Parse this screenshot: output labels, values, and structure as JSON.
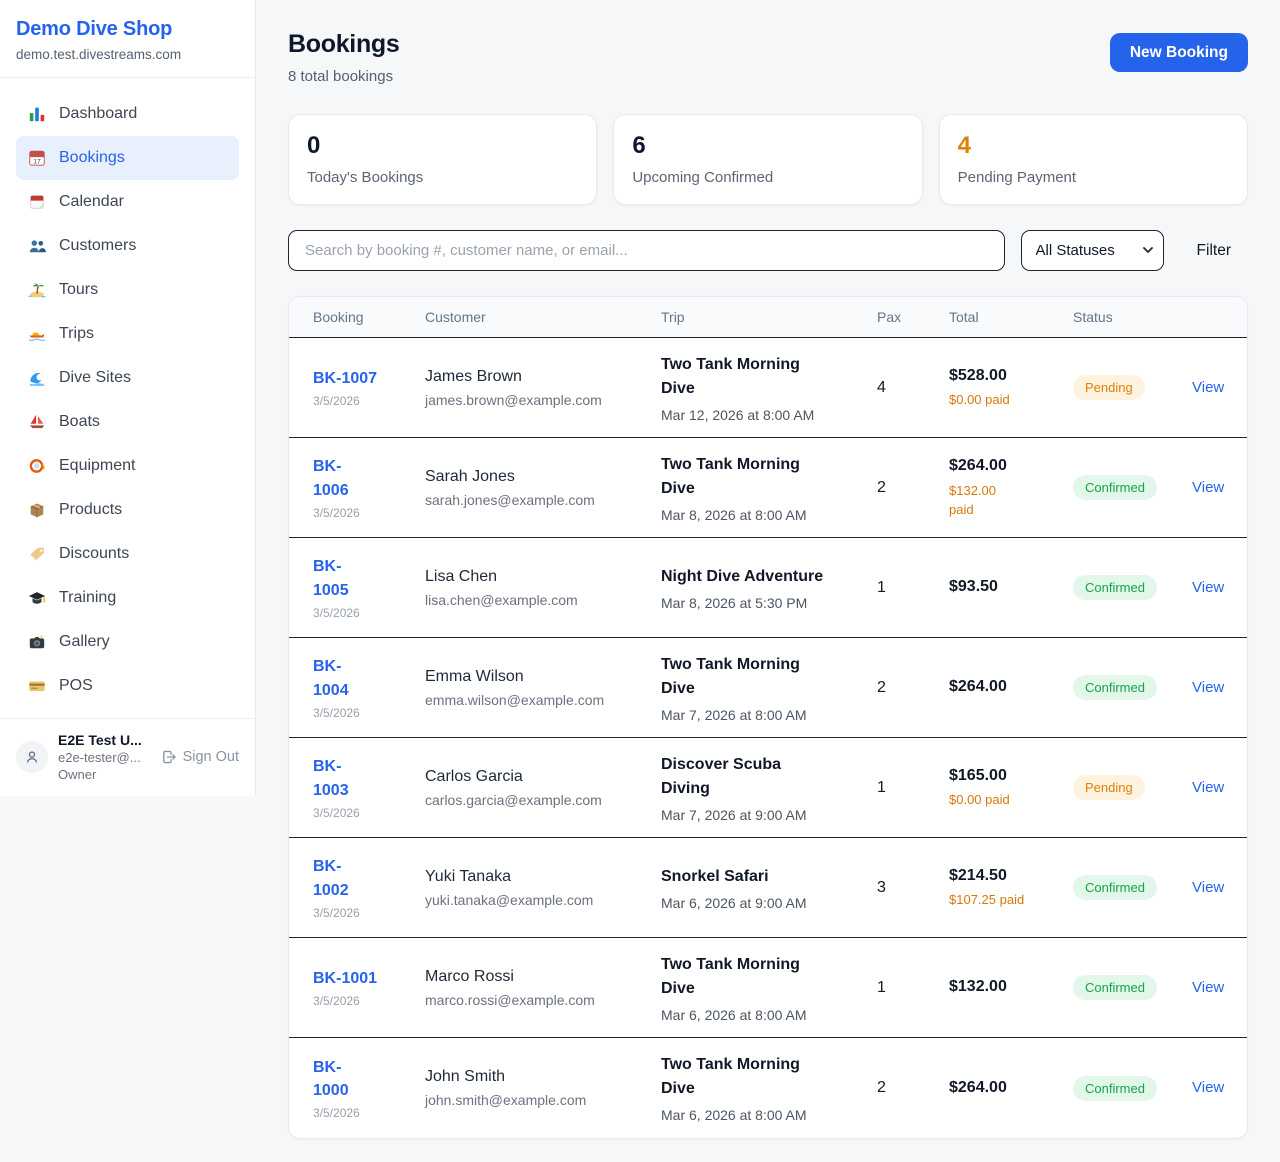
{
  "colors": {
    "accent": "#2563eb",
    "pending_text": "#dd7d10",
    "pending_bg": "#fdf3de",
    "confirmed_text": "#18a34a",
    "confirmed_bg": "#e2f7e9",
    "paid_orange": "#d97706"
  },
  "sidebar": {
    "shop_name": "Demo Dive Shop",
    "domain": "demo.test.divestreams.com",
    "nav": [
      {
        "label": "Dashboard",
        "icon": "bar-chart-icon",
        "active": false
      },
      {
        "label": "Bookings",
        "icon": "calendar-17-icon",
        "active": true
      },
      {
        "label": "Calendar",
        "icon": "tear-calendar-icon",
        "active": false
      },
      {
        "label": "Customers",
        "icon": "people-icon",
        "active": false
      },
      {
        "label": "Tours",
        "icon": "island-icon",
        "active": false
      },
      {
        "label": "Trips",
        "icon": "speedboat-icon",
        "active": false
      },
      {
        "label": "Dive Sites",
        "icon": "wave-icon",
        "active": false
      },
      {
        "label": "Boats",
        "icon": "sailboat-icon",
        "active": false
      },
      {
        "label": "Equipment",
        "icon": "dive-mask-icon",
        "active": false
      },
      {
        "label": "Products",
        "icon": "box-icon",
        "active": false
      },
      {
        "label": "Discounts",
        "icon": "tag-icon",
        "active": false
      },
      {
        "label": "Training",
        "icon": "grad-cap-icon",
        "active": false
      },
      {
        "label": "Gallery",
        "icon": "camera-icon",
        "active": false
      },
      {
        "label": "POS",
        "icon": "credit-card-icon",
        "active": false
      }
    ],
    "user": {
      "name": "E2E Test U...",
      "email": "e2e-tester@...",
      "role": "Owner",
      "sign_out": "Sign Out"
    }
  },
  "header": {
    "title": "Bookings",
    "subtitle": "8 total bookings",
    "new_booking": "New Booking"
  },
  "stats": [
    {
      "value": "0",
      "label": "Today's Bookings",
      "highlight": false
    },
    {
      "value": "6",
      "label": "Upcoming Confirmed",
      "highlight": false
    },
    {
      "value": "4",
      "label": "Pending Payment",
      "highlight": true
    }
  ],
  "filters": {
    "search_placeholder": "Search by booking #, customer name, or email...",
    "status_selected": "All Statuses",
    "filter_label": "Filter"
  },
  "table": {
    "headers": [
      "Booking",
      "Customer",
      "Trip",
      "Pax",
      "Total",
      "Status"
    ],
    "view_label": "View",
    "rows": [
      {
        "booking_lines": [
          "BK-1007"
        ],
        "date": "3/5/2026",
        "customer": "James Brown",
        "email": "james.brown@example.com",
        "trip_lines": [
          "Two Tank Morning",
          "Dive"
        ],
        "trip_datetime": "Mar 12, 2026 at 8:00 AM",
        "pax": "4",
        "total": "$528.00",
        "paid_lines": [
          "$0.00 paid"
        ],
        "status": "Pending",
        "status_type": "pending"
      },
      {
        "booking_lines": [
          "BK-",
          "1006"
        ],
        "date": "3/5/2026",
        "customer": "Sarah Jones",
        "email": "sarah.jones@example.com",
        "trip_lines": [
          "Two Tank Morning",
          "Dive"
        ],
        "trip_datetime": "Mar 8, 2026 at 8:00 AM",
        "pax": "2",
        "total": "$264.00",
        "paid_lines": [
          "$132.00",
          "paid"
        ],
        "status": "Confirmed",
        "status_type": "confirmed"
      },
      {
        "booking_lines": [
          "BK-",
          "1005"
        ],
        "date": "3/5/2026",
        "customer": "Lisa Chen",
        "email": "lisa.chen@example.com",
        "trip_lines": [
          "Night Dive Adventure"
        ],
        "trip_datetime": "Mar 8, 2026 at 5:30 PM",
        "pax": "1",
        "total": "$93.50",
        "paid_lines": [],
        "status": "Confirmed",
        "status_type": "confirmed"
      },
      {
        "booking_lines": [
          "BK-",
          "1004"
        ],
        "date": "3/5/2026",
        "customer": "Emma Wilson",
        "email": "emma.wilson@example.com",
        "trip_lines": [
          "Two Tank Morning",
          "Dive"
        ],
        "trip_datetime": "Mar 7, 2026 at 8:00 AM",
        "pax": "2",
        "total": "$264.00",
        "paid_lines": [],
        "status": "Confirmed",
        "status_type": "confirmed"
      },
      {
        "booking_lines": [
          "BK-",
          "1003"
        ],
        "date": "3/5/2026",
        "customer": "Carlos Garcia",
        "email": "carlos.garcia@example.com",
        "trip_lines": [
          "Discover Scuba",
          "Diving"
        ],
        "trip_datetime": "Mar 7, 2026 at 9:00 AM",
        "pax": "1",
        "total": "$165.00",
        "paid_lines": [
          "$0.00 paid"
        ],
        "status": "Pending",
        "status_type": "pending"
      },
      {
        "booking_lines": [
          "BK-",
          "1002"
        ],
        "date": "3/5/2026",
        "customer": "Yuki Tanaka",
        "email": "yuki.tanaka@example.com",
        "trip_lines": [
          "Snorkel Safari"
        ],
        "trip_datetime": "Mar 6, 2026 at 9:00 AM",
        "pax": "3",
        "total": "$214.50",
        "paid_lines": [
          "$107.25 paid"
        ],
        "status": "Confirmed",
        "status_type": "confirmed"
      },
      {
        "booking_lines": [
          "BK-1001"
        ],
        "date": "3/5/2026",
        "customer": "Marco Rossi",
        "email": "marco.rossi@example.com",
        "trip_lines": [
          "Two Tank Morning",
          "Dive"
        ],
        "trip_datetime": "Mar 6, 2026 at 8:00 AM",
        "pax": "1",
        "total": "$132.00",
        "paid_lines": [],
        "status": "Confirmed",
        "status_type": "confirmed"
      },
      {
        "booking_lines": [
          "BK-",
          "1000"
        ],
        "date": "3/5/2026",
        "customer": "John Smith",
        "email": "john.smith@example.com",
        "trip_lines": [
          "Two Tank Morning",
          "Dive"
        ],
        "trip_datetime": "Mar 6, 2026 at 8:00 AM",
        "pax": "2",
        "total": "$264.00",
        "paid_lines": [],
        "status": "Confirmed",
        "status_type": "confirmed"
      }
    ]
  }
}
